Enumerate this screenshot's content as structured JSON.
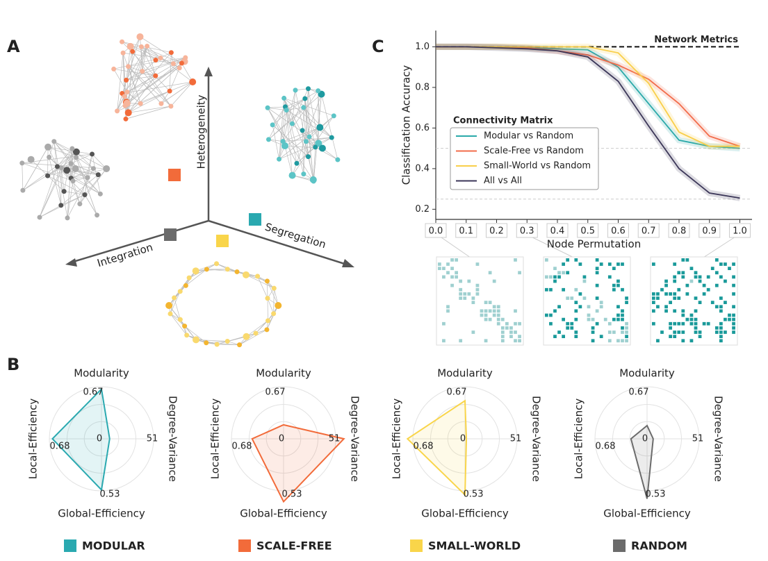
{
  "panel_labels": [
    "A",
    "B",
    "C"
  ],
  "diagram": {
    "axes": [
      "Heterogeneity",
      "Integration",
      "Segregation"
    ]
  },
  "chart_data": [
    {
      "type": "line",
      "xlabel": "Node Permutation",
      "ylabel": "Classification Accuracy",
      "x": [
        0,
        0.1,
        0.2,
        0.3,
        0.4,
        0.5,
        0.6,
        0.7,
        0.8,
        0.9,
        1.0
      ],
      "xlim": [
        0,
        1.04
      ],
      "ylim": [
        0.15,
        1.08
      ],
      "xticks": [
        {
          "value": 0,
          "label": "0.0"
        },
        0.1,
        0.2,
        0.3,
        0.4,
        0.5,
        0.6,
        0.7,
        0.8,
        0.9,
        {
          "value": 1,
          "label": "1.0"
        }
      ],
      "yticks": [
        0.2,
        0.4,
        0.6,
        0.8,
        {
          "value": 1,
          "label": "1.0"
        }
      ],
      "reference_line": {
        "value": 1,
        "label": "Network Metrics"
      },
      "chance_lines": [
        0.5,
        0.25
      ],
      "legend_title": "Connectivity Matrix",
      "legend_loc": "center left",
      "series": [
        {
          "name": "Modular vs Random",
          "color": "#2aa9a9",
          "values": [
            1.0,
            1.0,
            1.0,
            0.995,
            0.99,
            0.985,
            0.9,
            0.72,
            0.54,
            0.51,
            0.5
          ]
        },
        {
          "name": "Scale-Free vs Random",
          "color": "#f26b4a",
          "values": [
            1.0,
            1.0,
            1.0,
            0.995,
            0.98,
            0.96,
            0.91,
            0.84,
            0.72,
            0.56,
            0.51
          ]
        },
        {
          "name": "Small-World vs Random",
          "color": "#f9cf4a",
          "values": [
            1.0,
            1.0,
            1.0,
            1.0,
            1.0,
            1.0,
            0.97,
            0.82,
            0.58,
            0.51,
            0.51
          ]
        },
        {
          "name": "All vs All",
          "color": "#3b3658",
          "values": [
            1.0,
            1.0,
            0.995,
            0.99,
            0.98,
            0.95,
            0.83,
            0.61,
            0.4,
            0.28,
            0.255
          ]
        }
      ]
    },
    {
      "type": "radar",
      "axes": [
        "Modularity",
        "Degree-Variance",
        "Global-Efficiency",
        "Local-Efficiency"
      ],
      "rmax": [
        0.67,
        51,
        0.53,
        0.68
      ],
      "rmin": 0,
      "series": [
        {
          "name": "MODULAR",
          "color": "#2aa9b0",
          "values": [
            0.64,
            8,
            0.52,
            0.64
          ]
        }
      ]
    },
    {
      "type": "radar",
      "axes": [
        "Modularity",
        "Degree-Variance",
        "Global-Efficiency",
        "Local-Efficiency"
      ],
      "rmax": [
        0.67,
        51,
        0.53,
        0.68
      ],
      "rmin": 0,
      "series": [
        {
          "name": "SCALE-FREE",
          "color": "#f26b3a",
          "values": [
            0.18,
            59,
            0.64,
            0.41
          ]
        }
      ]
    },
    {
      "type": "radar",
      "axes": [
        "Modularity",
        "Degree-Variance",
        "Global-Efficiency",
        "Local-Efficiency"
      ],
      "rmax": [
        0.67,
        51,
        0.53,
        0.68
      ],
      "rmin": 0,
      "series": [
        {
          "name": "SMALL-WORLD",
          "color": "#f9d54a",
          "values": [
            0.49,
            1.4,
            0.57,
            0.75
          ]
        }
      ]
    },
    {
      "type": "radar",
      "axes": [
        "Modularity",
        "Degree-Variance",
        "Global-Efficiency",
        "Local-Efficiency"
      ],
      "rmax": [
        0.67,
        51,
        0.53,
        0.68
      ],
      "rmin": 0,
      "series": [
        {
          "name": "RANDOM",
          "color": "#6b6b6b",
          "values": [
            0.17,
            6,
            0.61,
            0.21
          ]
        }
      ]
    }
  ]
}
